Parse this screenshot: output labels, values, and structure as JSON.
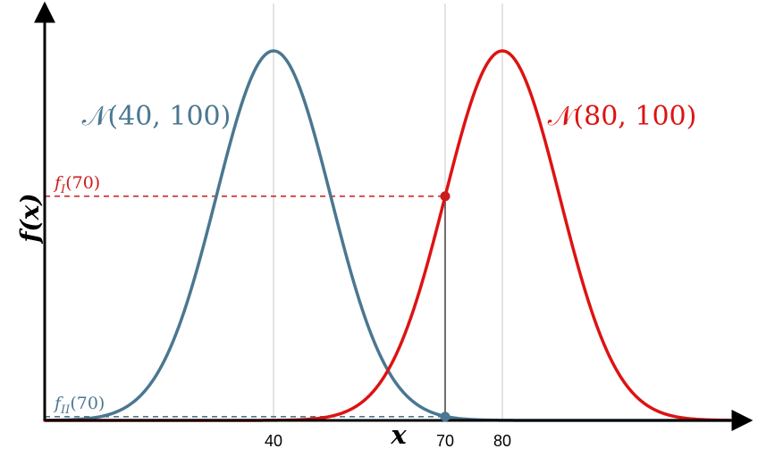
{
  "chart_data": {
    "type": "line",
    "xlabel": "x",
    "ylabel": "f(x)",
    "xlim": [
      0,
      120
    ],
    "ylim": [
      0,
      0.04
    ],
    "x_ticks": [
      40,
      70,
      80
    ],
    "vertical_gridlines": [
      40,
      70,
      80
    ],
    "grid": false,
    "series": [
      {
        "name": "𝒩(40, 100)",
        "mean": 40,
        "variance": 100,
        "color": "#4a7791"
      },
      {
        "name": "𝒩(80, 100)",
        "mean": 80,
        "variance": 100,
        "color": "#dd1313"
      }
    ],
    "annotations": [
      {
        "label": "f",
        "subscript": "I",
        "suffix": "(70)",
        "x": 70,
        "y": 0.0242,
        "series": "𝒩(80, 100)",
        "color": "#cc1b1b"
      },
      {
        "label": "f",
        "subscript": "II",
        "suffix": "(70)",
        "x": 70,
        "y": 0.0004,
        "series": "𝒩(40, 100)",
        "color": "#4a7791"
      }
    ]
  }
}
